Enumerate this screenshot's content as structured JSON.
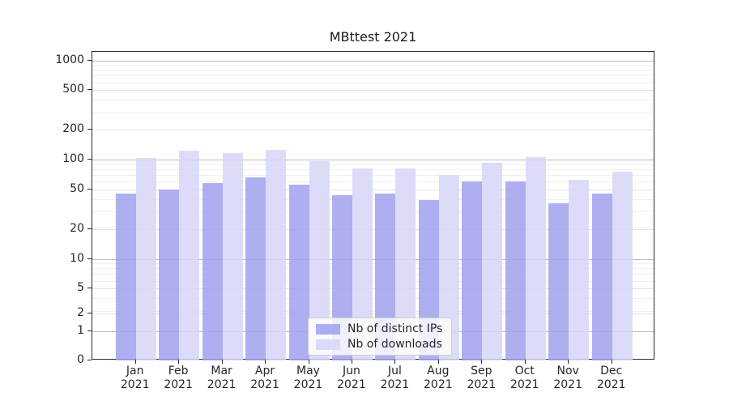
{
  "chart_data": {
    "type": "bar",
    "title": "MBttest 2021",
    "categories": [
      "Jan 2021",
      "Feb 2021",
      "Mar 2021",
      "Apr 2021",
      "May 2021",
      "Jun 2021",
      "Jul 2021",
      "Aug 2021",
      "Sep 2021",
      "Oct 2021",
      "Nov 2021",
      "Dec 2021"
    ],
    "series": [
      {
        "name": "Nb of distinct IPs",
        "color": "#a0a0ef",
        "values": [
          45,
          50,
          58,
          66,
          56,
          44,
          45,
          39,
          60,
          60,
          36,
          45
        ]
      },
      {
        "name": "Nb of downloads",
        "color": "#d6d6f8",
        "values": [
          103,
          124,
          117,
          126,
          97,
          82,
          81,
          70,
          92,
          105,
          63,
          75
        ]
      }
    ],
    "yscale": "log",
    "y_tick_values": [
      1000,
      500,
      200,
      100,
      50,
      20,
      10,
      5,
      2,
      1,
      0
    ],
    "ylim": [
      0,
      1200
    ],
    "grid": true,
    "legend_position": "lower-center-inside"
  }
}
